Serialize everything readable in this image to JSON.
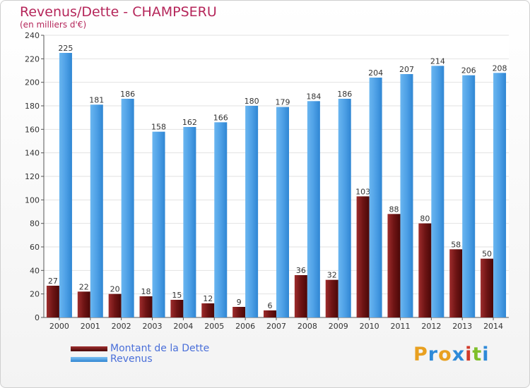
{
  "header": {
    "title": "Revenus/Dette - CHAMPSERU",
    "subtitle": "(en milliers d'€)"
  },
  "chart_data": {
    "type": "bar",
    "categories": [
      "2000",
      "2001",
      "2002",
      "2003",
      "2004",
      "2005",
      "2006",
      "2007",
      "2008",
      "2009",
      "2010",
      "2011",
      "2012",
      "2013",
      "2014"
    ],
    "series": [
      {
        "name": "Montant de la Dette",
        "color": "#7a1a1a",
        "values": [
          27,
          22,
          20,
          18,
          15,
          12,
          9,
          6,
          36,
          32,
          103,
          88,
          80,
          58,
          50
        ]
      },
      {
        "name": "Revenus",
        "color": "#4ea0e6",
        "values": [
          225,
          181,
          186,
          158,
          162,
          166,
          180,
          179,
          184,
          186,
          204,
          207,
          214,
          206,
          208
        ]
      }
    ],
    "ylim": [
      0,
      240
    ],
    "yticks": [
      0,
      20,
      40,
      60,
      80,
      100,
      120,
      140,
      160,
      180,
      200,
      220,
      240
    ],
    "grid": true,
    "legend_position": "bottom-left"
  },
  "logo": {
    "text": "Proxiti",
    "letters": [
      {
        "ch": "P",
        "color": "#e8a020"
      },
      {
        "ch": "r",
        "color": "#2e8ad8"
      },
      {
        "ch": "o",
        "color": "#e8a020"
      },
      {
        "ch": "x",
        "color": "#2e8ad8"
      },
      {
        "ch": "i",
        "color": "#d23a2a"
      },
      {
        "ch": "t",
        "color": "#7fbf2a"
      },
      {
        "ch": "i",
        "color": "#2e8ad8"
      }
    ]
  }
}
